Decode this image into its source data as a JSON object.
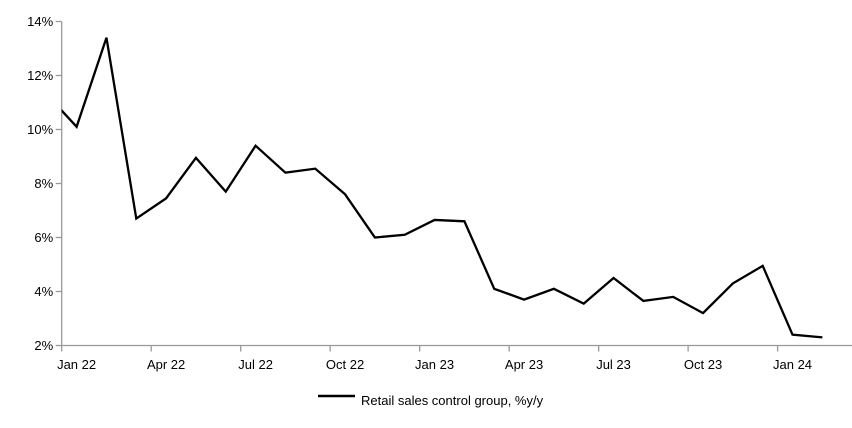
{
  "chart_data": {
    "type": "line",
    "title": "",
    "grid": false,
    "y_axis": {
      "tick_labels": [
        "14%",
        "12%",
        "10%",
        "8%",
        "6%",
        "4%",
        "2%"
      ],
      "min": 2,
      "max": 14,
      "step": 2,
      "unit": "%"
    },
    "x_axis": {
      "tick_labels": [
        "Jan 22",
        "Apr 22",
        "Jul 22",
        "Oct 22",
        "Jan 23",
        "Apr 23",
        "Jul 23",
        "Oct 23",
        "Jan 24"
      ],
      "label_interval_months": 3
    },
    "months": [
      "Jan 22",
      "Feb 22",
      "Mar 22",
      "Apr 22",
      "May 22",
      "Jun 22",
      "Jul 22",
      "Aug 22",
      "Sep 22",
      "Oct 22",
      "Nov 22",
      "Dec 22",
      "Jan 23",
      "Feb 23",
      "Mar 23",
      "Apr 23",
      "May 23",
      "Jun 23",
      "Jul 23",
      "Aug 23",
      "Sep 23",
      "Oct 23",
      "Nov 23",
      "Dec 23",
      "Jan 24",
      "Feb 24"
    ],
    "series": [
      {
        "name": "Retail sales control group, %y/y",
        "color": "#000000",
        "values": [
          10.1,
          13.4,
          6.7,
          7.45,
          8.95,
          7.7,
          9.4,
          8.4,
          8.55,
          7.6,
          6.0,
          6.1,
          6.65,
          6.6,
          4.1,
          3.7,
          4.1,
          3.55,
          4.5,
          3.65,
          3.8,
          3.2,
          4.3,
          4.95,
          2.4,
          2.3
        ]
      }
    ],
    "lead_in_point": {
      "month": "Dec 21",
      "value": 11.3,
      "note": "point sits left of the plot edge; its segment into Jan 22 is visibly clipped at the y-axis at ~10.65%"
    },
    "legend": {
      "position": "bottom-center",
      "label": "Retail sales control group, %y/y"
    },
    "colors": {
      "line": "#000000",
      "axis": "#999999",
      "text": "#000000",
      "background": "#ffffff"
    }
  }
}
